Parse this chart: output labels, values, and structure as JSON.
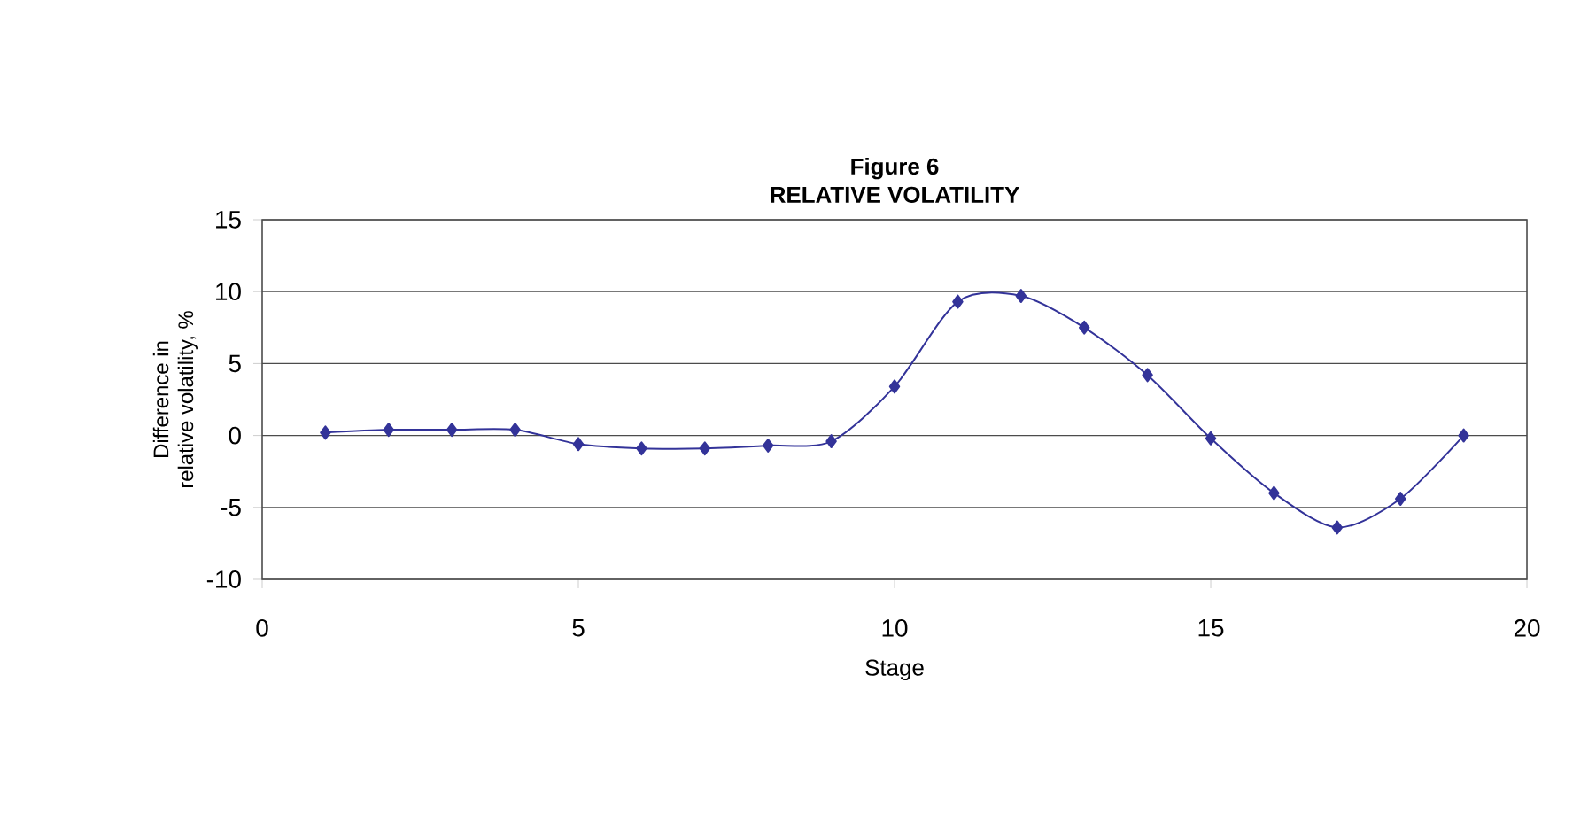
{
  "chart_data": {
    "type": "line",
    "title": "Figure 6\nRELATIVE VOLATILITY",
    "xlabel": "Stage",
    "ylabel": "Difference in\nrelative volatility, %",
    "x": [
      1,
      2,
      3,
      4,
      5,
      6,
      7,
      8,
      9,
      10,
      11,
      12,
      13,
      14,
      15,
      16,
      17,
      18,
      19
    ],
    "series": [
      {
        "color": "#333399",
        "values": [
          0.2,
          0.4,
          0.4,
          0.4,
          -0.6,
          -0.9,
          -0.9,
          -0.7,
          -0.4,
          3.4,
          9.3,
          9.7,
          7.5,
          4.2,
          -0.2,
          -4.0,
          -6.4,
          -4.4,
          0.0
        ]
      }
    ],
    "xlim": [
      0,
      20
    ],
    "xticks": [
      0,
      5,
      10,
      15,
      20
    ],
    "ylim": [
      -10,
      15
    ],
    "yticks": [
      -10,
      -5,
      0,
      5,
      10,
      15
    ],
    "grid": "y",
    "marker": "diamond",
    "line_style": "solid"
  }
}
